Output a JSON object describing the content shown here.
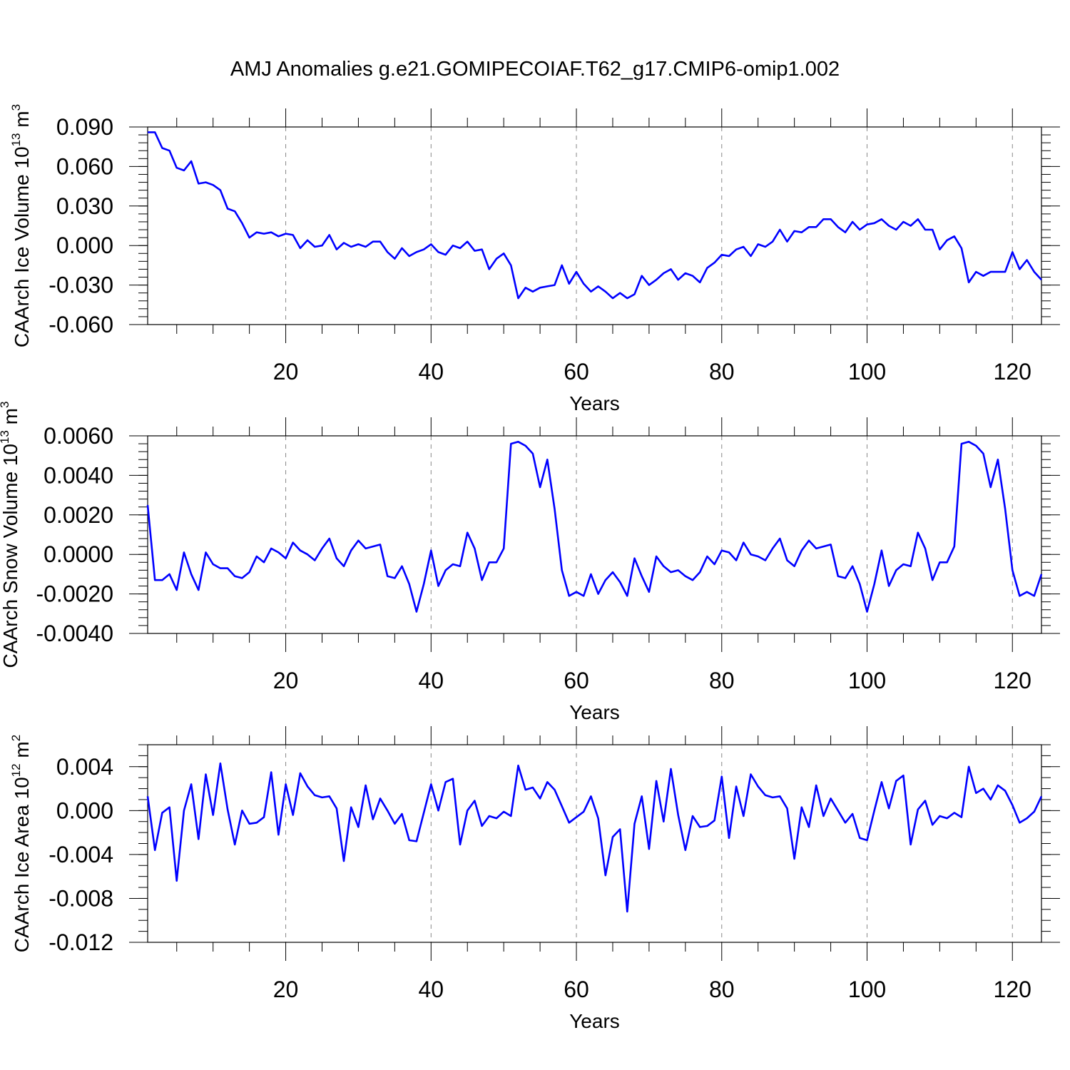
{
  "title": "AMJ Anomalies g.e21.GOMIPECOIAF.T62_g17.CMIP6-omip1.002",
  "line_color": "#0000ff",
  "chart_data": [
    {
      "type": "line",
      "ylabel": {
        "main": "CAArch Ice Volume 10",
        "exp": "13",
        "unit": "m",
        "unit_exp": "3"
      },
      "xlabel": "Years",
      "xlim": [
        1,
        124
      ],
      "ylim": [
        -0.06,
        0.09
      ],
      "xticks": [
        20,
        40,
        60,
        80,
        100,
        120
      ],
      "xtick_labels": [
        "20",
        "40",
        "60",
        "80",
        "100",
        "120"
      ],
      "yticks": [
        -0.06,
        -0.03,
        0.0,
        0.03,
        0.06,
        0.09
      ],
      "ytick_labels": [
        "-0.060",
        "-0.030",
        "0.000",
        "0.030",
        "0.060",
        "0.090"
      ],
      "yminor": 0.006,
      "grid_x": true,
      "series": [
        {
          "name": "CAArch Ice Volume",
          "x_start": 1,
          "values": [
            0.086,
            0.086,
            0.074,
            0.072,
            0.059,
            0.057,
            0.064,
            0.047,
            0.048,
            0.046,
            0.042,
            0.028,
            0.026,
            0.017,
            0.006,
            0.01,
            0.009,
            0.01,
            0.007,
            0.009,
            0.008,
            -0.002,
            0.004,
            -0.001,
            0.0,
            0.008,
            -0.003,
            0.002,
            -0.001,
            0.001,
            -0.001,
            0.003,
            0.003,
            -0.005,
            -0.01,
            -0.002,
            -0.008,
            -0.005,
            -0.003,
            0.001,
            -0.005,
            -0.007,
            0.0,
            -0.002,
            0.003,
            -0.004,
            -0.003,
            -0.018,
            -0.01,
            -0.006,
            -0.015,
            -0.04,
            -0.032,
            -0.035,
            -0.032,
            -0.031,
            -0.03,
            -0.015,
            -0.029,
            -0.02,
            -0.029,
            -0.035,
            -0.031,
            -0.035,
            -0.04,
            -0.036,
            -0.04,
            -0.037,
            -0.023,
            -0.03,
            -0.026,
            -0.021,
            -0.018,
            -0.026,
            -0.021,
            -0.023,
            -0.028,
            -0.017,
            -0.013,
            -0.007,
            -0.008,
            -0.003,
            -0.001,
            -0.008,
            0.001,
            -0.001,
            0.003,
            0.012,
            0.003,
            0.011,
            0.01,
            0.014,
            0.014,
            0.02,
            0.02,
            0.014,
            0.01,
            0.018,
            0.012,
            0.016,
            0.017,
            0.02,
            0.015,
            0.012,
            0.018,
            0.015,
            0.02,
            0.012,
            0.012,
            -0.003,
            0.004,
            0.007,
            -0.002,
            -0.028,
            -0.02,
            -0.023,
            -0.02,
            -0.02,
            -0.02,
            -0.005,
            -0.018,
            -0.011,
            -0.02,
            -0.026
          ]
        }
      ]
    },
    {
      "type": "line",
      "ylabel": {
        "main": "CAArch Snow Volume 10",
        "exp": "13",
        "unit": "m",
        "unit_exp": "3"
      },
      "xlabel": "Years",
      "xlim": [
        1,
        124
      ],
      "ylim": [
        -0.004,
        0.006
      ],
      "xticks": [
        20,
        40,
        60,
        80,
        100,
        120
      ],
      "xtick_labels": [
        "20",
        "40",
        "60",
        "80",
        "100",
        "120"
      ],
      "yticks": [
        -0.004,
        -0.002,
        0.0,
        0.002,
        0.004,
        0.006
      ],
      "ytick_labels": [
        "-0.0040",
        "-0.0020",
        "0.0000",
        "0.0020",
        "0.0040",
        "0.0060"
      ],
      "yminor": 0.0004,
      "grid_x": true,
      "series": [
        {
          "name": "CAArch Snow Volume",
          "x_start": 1,
          "values": [
            0.0025,
            -0.0013,
            -0.0013,
            -0.001,
            -0.0018,
            0.0001,
            -0.001,
            -0.0018,
            0.0001,
            -0.0005,
            -0.0007,
            -0.0007,
            -0.0011,
            -0.0012,
            -0.0009,
            -0.0001,
            -0.0004,
            0.0003,
            0.0001,
            -0.0002,
            0.0006,
            0.0002,
            0.0,
            -0.0003,
            0.0003,
            0.0008,
            -0.0002,
            -0.0006,
            0.0002,
            0.0007,
            0.0003,
            0.0004,
            0.0005,
            -0.0011,
            -0.0012,
            -0.0006,
            -0.0015,
            -0.0029,
            -0.0015,
            0.0002,
            -0.0016,
            -0.0008,
            -0.0005,
            -0.0006,
            0.0011,
            0.0003,
            -0.0013,
            -0.0004,
            -0.0004,
            0.0003,
            0.0056,
            0.0057,
            0.0055,
            0.0051,
            0.0034,
            0.0048,
            0.0023,
            -0.0008,
            -0.0021,
            -0.0019,
            -0.0021,
            -0.001,
            -0.002,
            -0.0013,
            -0.0009,
            -0.0014,
            -0.0021,
            -0.0002,
            -0.0011,
            -0.0019,
            -0.0001,
            -0.0006,
            -0.0009,
            -0.0008,
            -0.0011,
            -0.0013,
            -0.0009,
            -0.0001,
            -0.0005,
            0.0002,
            0.0001,
            -0.0003,
            0.0006,
            0.0,
            -0.0001,
            -0.0003,
            0.0003,
            0.0008,
            -0.0003,
            -0.0006,
            0.0002,
            0.0007,
            0.0003,
            0.0004,
            0.0005,
            -0.0011,
            -0.0012,
            -0.0006,
            -0.0015,
            -0.0029,
            -0.0015,
            0.0002,
            -0.0016,
            -0.0008,
            -0.0005,
            -0.0006,
            0.0011,
            0.0003,
            -0.0013,
            -0.0004,
            -0.0004,
            0.0004,
            0.0056,
            0.0057,
            0.0055,
            0.0051,
            0.0034,
            0.0048,
            0.0023,
            -0.0008,
            -0.0021,
            -0.0019,
            -0.0021,
            -0.001
          ]
        }
      ]
    },
    {
      "type": "line",
      "ylabel": {
        "main": "CAArch Ice Area 10",
        "exp": "12",
        "unit": "m",
        "unit_exp": "2"
      },
      "xlabel": "Years",
      "xlim": [
        1,
        124
      ],
      "ylim": [
        -0.012,
        0.006
      ],
      "xticks": [
        20,
        40,
        60,
        80,
        100,
        120
      ],
      "xtick_labels": [
        "20",
        "40",
        "60",
        "80",
        "100",
        "120"
      ],
      "yticks": [
        -0.012,
        -0.008,
        -0.004,
        0.0,
        0.004
      ],
      "ytick_labels": [
        "-0.012",
        "-0.008",
        "-0.004",
        "0.000",
        "0.004"
      ],
      "yminor": 0.001,
      "grid_x": true,
      "series": [
        {
          "name": "CAArch Ice Area",
          "x_start": 1,
          "values": [
            0.0013,
            -0.0036,
            -0.0002,
            0.0003,
            -0.0064,
            0.0,
            0.0024,
            -0.0026,
            0.0033,
            -0.0004,
            0.0043,
            0.0001,
            -0.0031,
            0.0,
            -0.0012,
            -0.0011,
            -0.0006,
            0.0035,
            -0.0022,
            0.0024,
            -0.0004,
            0.0034,
            0.0022,
            0.0014,
            0.0012,
            0.0013,
            0.0002,
            -0.0046,
            0.0003,
            -0.0015,
            0.0023,
            -0.0008,
            0.0011,
            0.0,
            -0.0012,
            -0.0003,
            -0.0027,
            -0.0028,
            -0.0002,
            0.0024,
            0.0,
            0.0026,
            0.0029,
            -0.0031,
            0.0,
            0.0009,
            -0.0014,
            -0.0005,
            -0.0007,
            -0.0001,
            -0.0005,
            0.0041,
            0.0019,
            0.0021,
            0.0011,
            0.0026,
            0.0019,
            0.0004,
            -0.0011,
            -0.0006,
            -0.0001,
            0.0013,
            -0.0007,
            -0.0059,
            -0.0024,
            -0.0017,
            -0.0092,
            -0.0012,
            0.0013,
            -0.0035,
            0.0027,
            -0.001,
            0.0038,
            -0.0004,
            -0.0036,
            -0.0005,
            -0.0015,
            -0.0014,
            -0.0009,
            0.0031,
            -0.0025,
            0.0022,
            -0.0005,
            0.0033,
            0.0022,
            0.0014,
            0.0012,
            0.0013,
            0.0002,
            -0.0044,
            0.0003,
            -0.0015,
            0.0023,
            -0.0005,
            0.0011,
            0.0,
            -0.0011,
            -0.0003,
            -0.0025,
            -0.0027,
            0.0,
            0.0026,
            0.0002,
            0.0027,
            0.0032,
            -0.0031,
            0.0001,
            0.0009,
            -0.0013,
            -0.0005,
            -0.0007,
            -0.0002,
            -0.0006,
            0.004,
            0.0016,
            0.002,
            0.001,
            0.0023,
            0.0018,
            0.0005,
            -0.0011,
            -0.0007,
            -0.0001,
            0.0013
          ]
        }
      ]
    }
  ]
}
